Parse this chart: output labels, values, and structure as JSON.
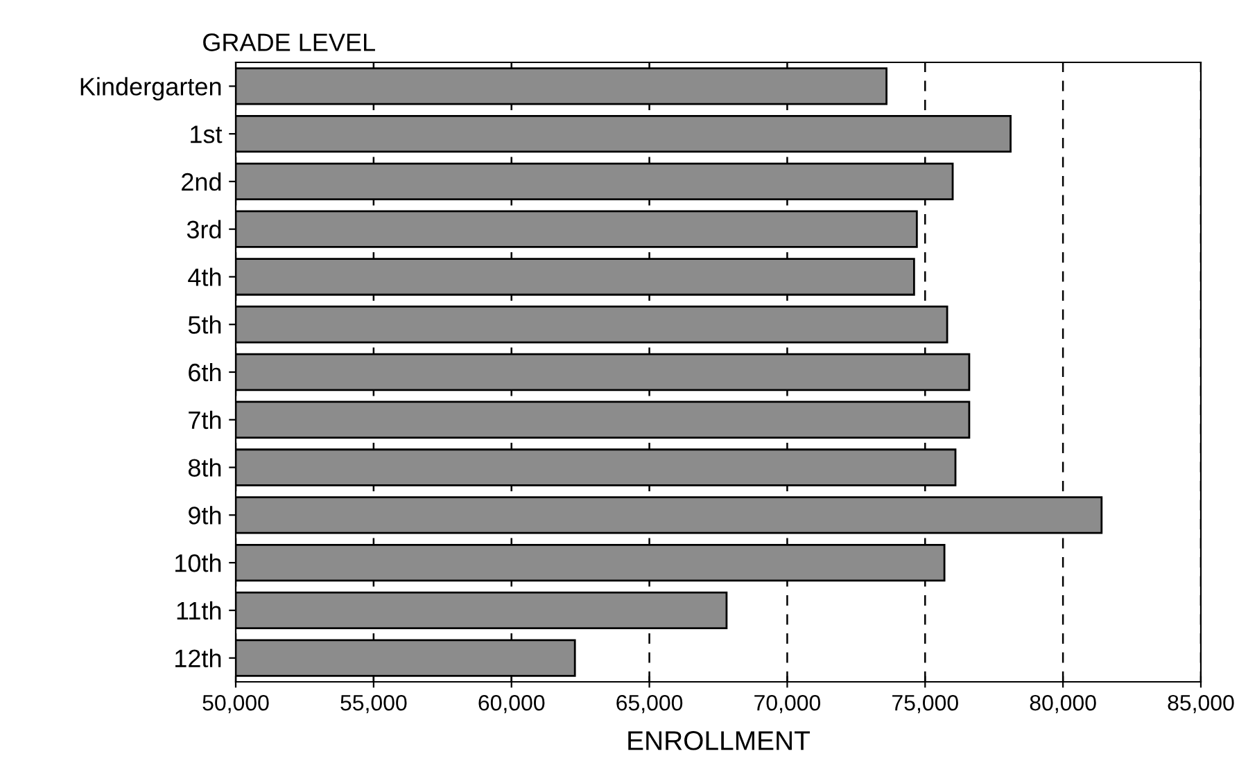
{
  "chart_data": {
    "type": "bar",
    "orientation": "horizontal",
    "ylabel": "GRADE LEVEL",
    "xlabel": "ENROLLMENT",
    "categories": [
      "Kindergarten",
      "1st",
      "2nd",
      "3rd",
      "4th",
      "5th",
      "6th",
      "7th",
      "8th",
      "9th",
      "10th",
      "11th",
      "12th"
    ],
    "values": [
      73600,
      78100,
      76000,
      74700,
      74600,
      75800,
      76600,
      76600,
      76100,
      81400,
      75700,
      67800,
      62300
    ],
    "color": "#8c8c8c",
    "xlim": [
      50000,
      85000
    ],
    "xticks": [
      {
        "value": 50000,
        "label": "50,000"
      },
      {
        "value": 55000,
        "label": "55,000"
      },
      {
        "value": 60000,
        "label": "60,000"
      },
      {
        "value": 65000,
        "label": "65,000"
      },
      {
        "value": 70000,
        "label": "70,000"
      },
      {
        "value": 75000,
        "label": "75,000"
      },
      {
        "value": 80000,
        "label": "80,000"
      },
      {
        "value": 85000,
        "label": "85,000"
      }
    ],
    "grid": "x",
    "line_style": "dashed",
    "legend": false
  }
}
